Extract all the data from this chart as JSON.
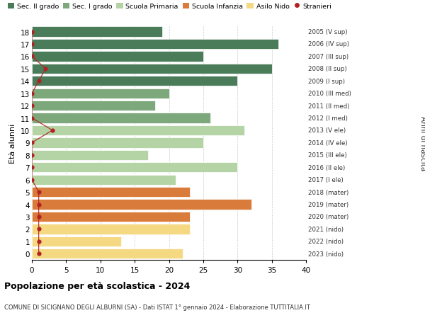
{
  "ages": [
    18,
    17,
    16,
    15,
    14,
    13,
    12,
    11,
    10,
    9,
    8,
    7,
    6,
    5,
    4,
    3,
    2,
    1,
    0
  ],
  "values": [
    19,
    36,
    25,
    35,
    30,
    20,
    18,
    26,
    31,
    25,
    17,
    30,
    21,
    23,
    32,
    23,
    23,
    13,
    22
  ],
  "stranieri": [
    0,
    0,
    0,
    2,
    1,
    0,
    0,
    0,
    3,
    0,
    0,
    0,
    0,
    1,
    1,
    1,
    1,
    1,
    1
  ],
  "right_labels": [
    "2005 (V sup)",
    "2006 (IV sup)",
    "2007 (III sup)",
    "2008 (II sup)",
    "2009 (I sup)",
    "2010 (III med)",
    "2011 (II med)",
    "2012 (I med)",
    "2013 (V ele)",
    "2014 (IV ele)",
    "2015 (III ele)",
    "2016 (II ele)",
    "2017 (I ele)",
    "2018 (mater)",
    "2019 (mater)",
    "2020 (mater)",
    "2021 (nido)",
    "2022 (nido)",
    "2023 (nido)"
  ],
  "bar_colors": [
    "#4a7c59",
    "#4a7c59",
    "#4a7c59",
    "#4a7c59",
    "#4a7c59",
    "#7da87b",
    "#7da87b",
    "#7da87b",
    "#b5d4a5",
    "#b5d4a5",
    "#b5d4a5",
    "#b5d4a5",
    "#b5d4a5",
    "#d97b3a",
    "#d97b3a",
    "#d97b3a",
    "#f5d882",
    "#f5d882",
    "#f5d882"
  ],
  "legend_labels": [
    "Sec. II grado",
    "Sec. I grado",
    "Scuola Primaria",
    "Scuola Infanzia",
    "Asilo Nido",
    "Stranieri"
  ],
  "legend_colors": [
    "#4a7c59",
    "#7da87b",
    "#b5d4a5",
    "#d97b3a",
    "#f5d882",
    "#b22222"
  ],
  "title": "Popolazione per età scolastica - 2024",
  "subtitle": "COMUNE DI SICIGNANO DEGLI ALBURNI (SA) - Dati ISTAT 1° gennaio 2024 - Elaborazione TUTTITALIA.IT",
  "ylabel_left": "Età alunni",
  "ylabel_right": "Anni di nascita",
  "stranieri_color": "#b22222",
  "bg_color": "#ffffff",
  "xlim": [
    0,
    40
  ],
  "xticks": [
    0,
    5,
    10,
    15,
    20,
    25,
    30,
    35,
    40
  ]
}
